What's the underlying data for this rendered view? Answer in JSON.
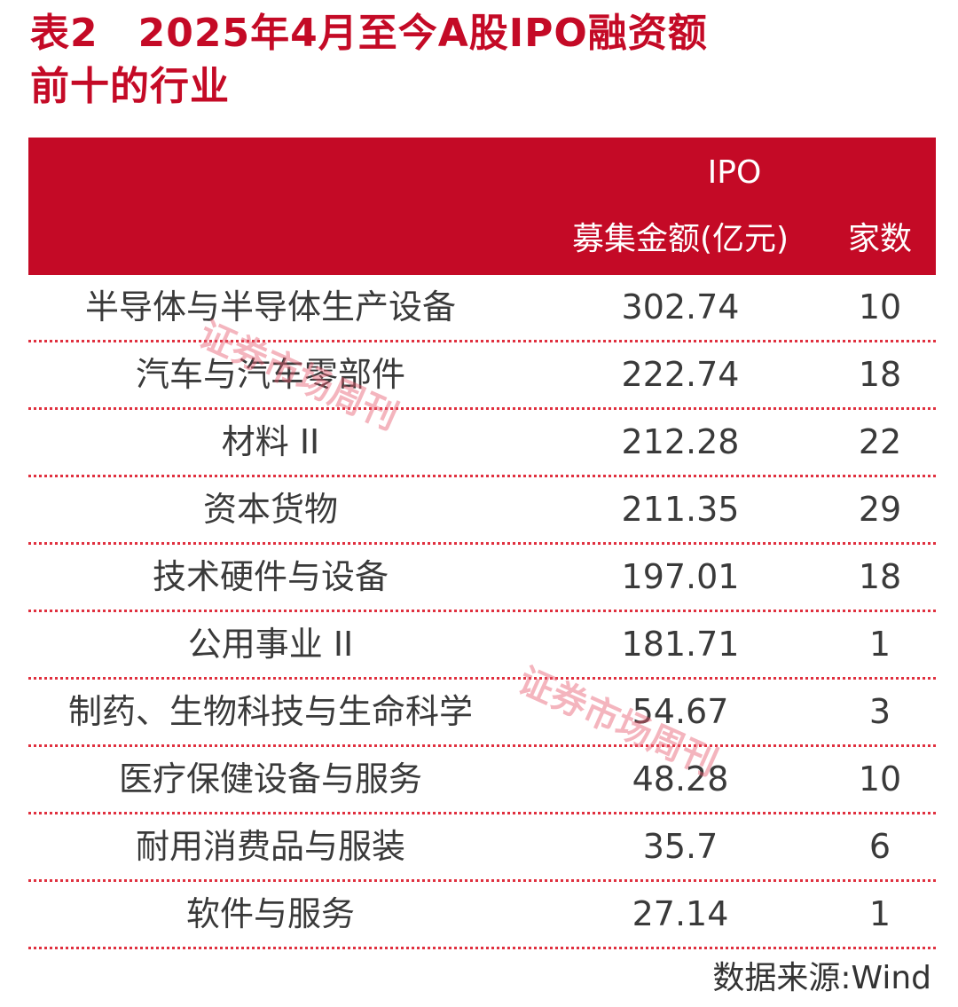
{
  "title": {
    "line1": "表2　2025年4月至今A股IPO融资额",
    "line2": "前十的行业"
  },
  "table": {
    "header": {
      "group_label": "IPO",
      "columns": [
        "",
        "募集金额(亿元)",
        "家数"
      ]
    },
    "rows": [
      {
        "industry": "半导体与半导体生产设备",
        "amount": "302.74",
        "count": "10"
      },
      {
        "industry": "汽车与汽车零部件",
        "amount": "222.74",
        "count": "18"
      },
      {
        "industry": "材料 II",
        "amount": "212.28",
        "count": "22"
      },
      {
        "industry": "资本货物",
        "amount": "211.35",
        "count": "29"
      },
      {
        "industry": "技术硬件与设备",
        "amount": "197.01",
        "count": "18"
      },
      {
        "industry": "公用事业 II",
        "amount": "181.71",
        "count": "1"
      },
      {
        "industry": "制药、生物科技与生命科学",
        "amount": "54.67",
        "count": "3"
      },
      {
        "industry": "医疗保健设备与服务",
        "amount": "48.28",
        "count": "10"
      },
      {
        "industry": "耐用消费品与服装",
        "amount": "35.7",
        "count": "6"
      },
      {
        "industry": "软件与服务",
        "amount": "27.14",
        "count": "1"
      }
    ]
  },
  "source": "数据来源:Wind",
  "watermark": "证券市场周刊",
  "colors": {
    "accent": "#c40a26",
    "text": "#3a3a3a",
    "divider": "#e0303f"
  }
}
